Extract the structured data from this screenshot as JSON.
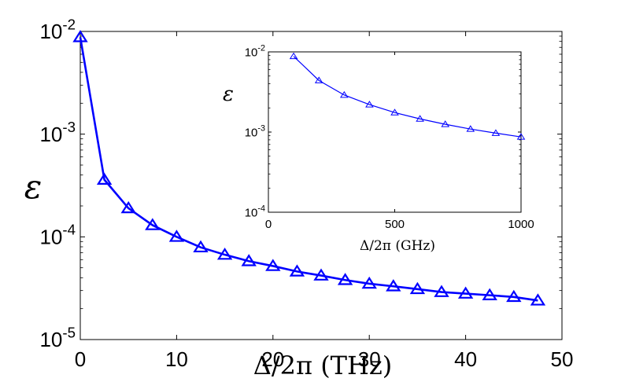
{
  "chart_data": [
    {
      "type": "line",
      "scale_y": "log",
      "xlabel": "Δ/2π (THz)",
      "ylabel": "ε",
      "xlim": [
        0,
        50
      ],
      "ylim": [
        1e-05,
        0.01
      ],
      "x_ticks": [
        "0",
        "10",
        "20",
        "30",
        "40",
        "50"
      ],
      "y_ticks": [
        {
          "base": "10",
          "exp": "-5"
        },
        {
          "base": "10",
          "exp": "-4"
        },
        {
          "base": "10",
          "exp": "-3"
        },
        {
          "base": "10",
          "exp": "-2"
        }
      ],
      "marker": "triangle",
      "color": "#0000ff",
      "series": [
        {
          "name": "epsilon",
          "x": [
            0,
            2.5,
            5,
            7.5,
            10,
            12.5,
            15,
            17.5,
            20,
            22.5,
            25,
            27.5,
            30,
            32.5,
            35,
            37.5,
            40,
            42.5,
            45,
            47.5
          ],
          "y": [
            0.0088,
            0.00036,
            0.00019,
            0.00013,
            0.0001,
            7.9e-05,
            6.7e-05,
            5.8e-05,
            5.2e-05,
            4.6e-05,
            4.2e-05,
            3.8e-05,
            3.5e-05,
            3.3e-05,
            3.1e-05,
            2.9e-05,
            2.8e-05,
            2.7e-05,
            2.6e-05,
            2.4e-05
          ]
        }
      ]
    },
    {
      "type": "line",
      "scale_y": "log",
      "xlabel": "Δ/2π (GHz)",
      "ylabel": "ε",
      "xlim": [
        0,
        1000
      ],
      "ylim": [
        0.0001,
        0.01
      ],
      "x_ticks": [
        "0",
        "500",
        "1000"
      ],
      "y_ticks": [
        {
          "base": "10",
          "exp": "-4"
        },
        {
          "base": "10",
          "exp": "-3"
        },
        {
          "base": "10",
          "exp": "-2"
        }
      ],
      "marker": "triangle",
      "color": "#0000ff",
      "series": [
        {
          "name": "epsilon",
          "x": [
            100,
            200,
            300,
            400,
            500,
            600,
            700,
            800,
            900,
            1000
          ],
          "y": [
            0.0088,
            0.0044,
            0.0029,
            0.0022,
            0.00175,
            0.00146,
            0.00125,
            0.00109,
            0.00097,
            0.00087
          ]
        }
      ]
    }
  ]
}
